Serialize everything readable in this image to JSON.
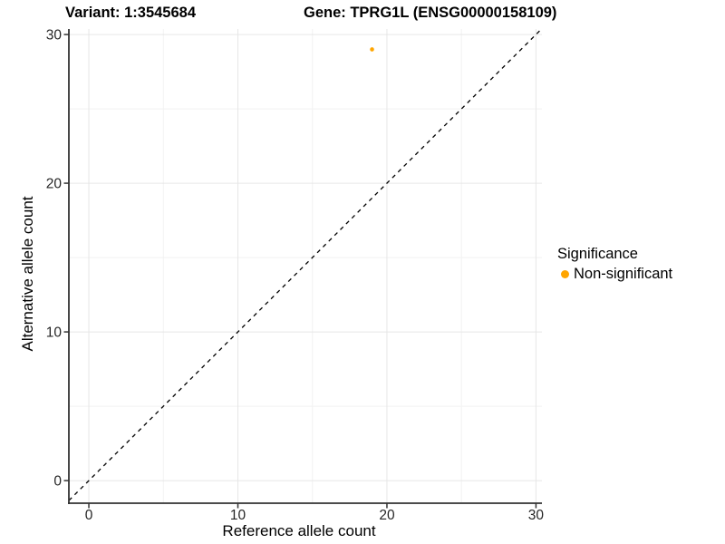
{
  "chart_data": {
    "type": "scatter",
    "title_left": "Variant: 1:3545684",
    "title_right": "Gene: TPRG1L (ENSG00000158109)",
    "xlabel": "Reference allele count",
    "ylabel": "Alternative allele count",
    "xlim": [
      -1.34,
      30.4
    ],
    "ylim": [
      -1.52,
      30.37
    ],
    "x_ticks": [
      0,
      10,
      20,
      30
    ],
    "y_ticks": [
      0,
      10,
      20,
      30
    ],
    "x_minor_ticks": [
      5,
      15,
      25
    ],
    "y_minor_ticks": [
      5,
      15,
      25
    ],
    "grid": true,
    "series": [
      {
        "name": "Non-significant",
        "color": "#FFA500",
        "points": [
          {
            "x": 19,
            "y": 29
          }
        ]
      }
    ],
    "reference_line": {
      "type": "identity",
      "style": "dashed",
      "color": "#000000"
    },
    "legend": {
      "title": "Significance",
      "position": "right",
      "items": [
        {
          "label": "Non-significant",
          "color": "#FFA500"
        }
      ]
    }
  },
  "colors": {
    "background": "#FFFFFF",
    "grid_major": "#E6E6E6",
    "grid_minor": "#F2F2F2",
    "axis_line": "#333333",
    "tick_text": "#262626"
  }
}
